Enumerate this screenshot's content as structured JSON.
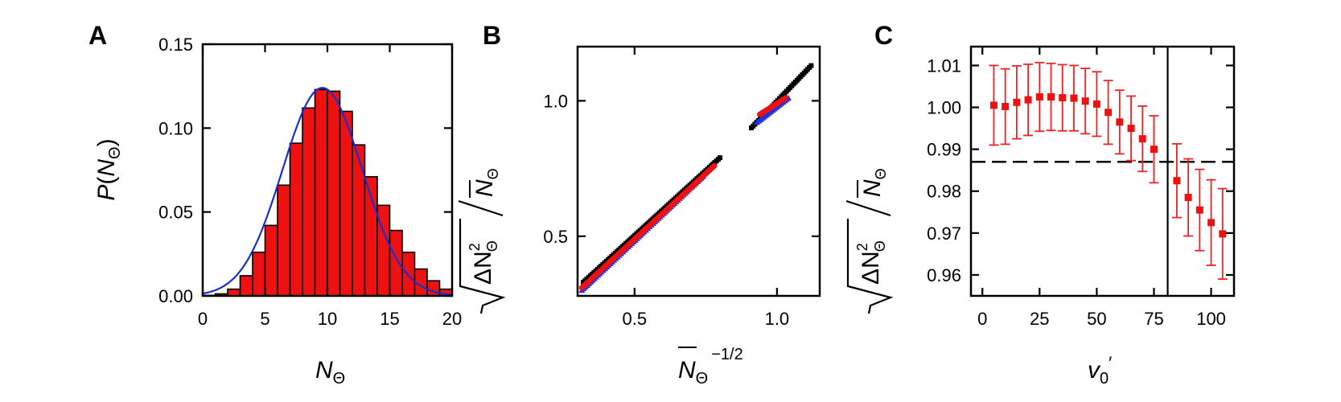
{
  "colors": {
    "red": "#ee1111",
    "blue": "#2233dd",
    "black": "#000000",
    "errorbar": "#ee2222",
    "fit": "#1a2ecc"
  },
  "chart_data": [
    {
      "panel": "A",
      "type": "bar",
      "xlabel_main": "N",
      "xlabel_sub": "Θ",
      "ylabel_main": "P",
      "ylabel_arg": "N",
      "ylabel_sub": "Θ",
      "xlim": [
        0,
        20
      ],
      "ylim": [
        0,
        0.15
      ],
      "xticks": [
        "0",
        "5",
        "10",
        "15",
        "20"
      ],
      "yticks": [
        "0.00",
        "0.05",
        "0.10",
        "0.15"
      ],
      "x": [
        0,
        1,
        2,
        3,
        4,
        5,
        6,
        7,
        8,
        9,
        10,
        11,
        12,
        13,
        14,
        15,
        16,
        17,
        18,
        19
      ],
      "values": [
        0.0003,
        0.0012,
        0.004,
        0.012,
        0.026,
        0.042,
        0.066,
        0.091,
        0.112,
        0.123,
        0.122,
        0.11,
        0.09,
        0.071,
        0.054,
        0.039,
        0.026,
        0.016,
        0.009,
        0.004
      ],
      "fit": {
        "type": "gaussian",
        "mean": 9.6,
        "sigma": 3.2,
        "peak": 0.124
      }
    },
    {
      "panel": "B",
      "type": "scatter",
      "xlabel_main": "N",
      "xlabel_sub": "Θ",
      "xlabel_sup": "−1/2",
      "ylabel_main": "ΔN",
      "ylabel_sub": "Θ",
      "ylabel_sup": "2",
      "ylabel_den": "N",
      "xlim": [
        0.3,
        1.15
      ],
      "ylim": [
        0.28,
        1.2
      ],
      "xticks": [
        "0.5",
        "1.0"
      ],
      "xtick_values": [
        0.5,
        1.0
      ],
      "yticks": [
        "0.5",
        "1.0"
      ],
      "ytick_values": [
        0.5,
        1.0
      ],
      "series": [
        {
          "color": "black",
          "segments": [
            {
              "x0": 0.32,
              "y0": 0.33,
              "x1": 0.8,
              "y1": 0.79
            },
            {
              "x0": 0.91,
              "y0": 0.9,
              "x1": 1.12,
              "y1": 1.13
            }
          ]
        },
        {
          "color": "red",
          "segments": [
            {
              "x0": 0.315,
              "y0": 0.31,
              "x1": 0.78,
              "y1": 0.76
            },
            {
              "x0": 0.94,
              "y0": 0.95,
              "x1": 1.03,
              "y1": 1.01
            }
          ]
        },
        {
          "color": "blue",
          "segments": [
            {
              "x0": 0.315,
              "y0": 0.3,
              "x1": 0.74,
              "y1": 0.72
            },
            {
              "x0": 0.93,
              "y0": 0.92,
              "x1": 1.04,
              "y1": 1.01
            }
          ]
        }
      ]
    },
    {
      "panel": "C",
      "type": "scatter",
      "xlabel_main": "v",
      "xlabel_sub": "0",
      "xlabel_sup": "′",
      "ylabel_main": "ΔN",
      "ylabel_sub": "Θ",
      "ylabel_sup": "2",
      "ylabel_den": "N",
      "xlim": [
        -5,
        110
      ],
      "ylim": [
        0.955,
        1.0145
      ],
      "xticks": [
        "0",
        "25",
        "50",
        "75",
        "100"
      ],
      "xtick_values": [
        0,
        25,
        50,
        75,
        100
      ],
      "yticks": [
        "0.96",
        "0.97",
        "0.98",
        "0.99",
        "1.00",
        "1.01"
      ],
      "ytick_values": [
        0.96,
        0.97,
        0.98,
        0.99,
        1.0,
        1.01
      ],
      "x": [
        5,
        10,
        15,
        20,
        25,
        30,
        35,
        40,
        45,
        50,
        55,
        60,
        65,
        70,
        75,
        85,
        90,
        95,
        100,
        105
      ],
      "y": [
        1.0005,
        1.0002,
        1.0012,
        1.0018,
        1.0025,
        1.0025,
        1.0023,
        1.0022,
        1.0015,
        1.0008,
        0.9988,
        0.9965,
        0.995,
        0.9925,
        0.99,
        0.9825,
        0.9785,
        0.9755,
        0.9725,
        0.9698
      ],
      "err": [
        0.0095,
        0.009,
        0.0087,
        0.0085,
        0.0082,
        0.008,
        0.0079,
        0.0078,
        0.0078,
        0.0077,
        0.0076,
        0.0076,
        0.0077,
        0.0078,
        0.008,
        0.0088,
        0.0092,
        0.0097,
        0.0102,
        0.0108
      ],
      "hline": 0.987,
      "vline": 81
    }
  ],
  "panels": {
    "a": "A",
    "b": "B",
    "c": "C"
  }
}
